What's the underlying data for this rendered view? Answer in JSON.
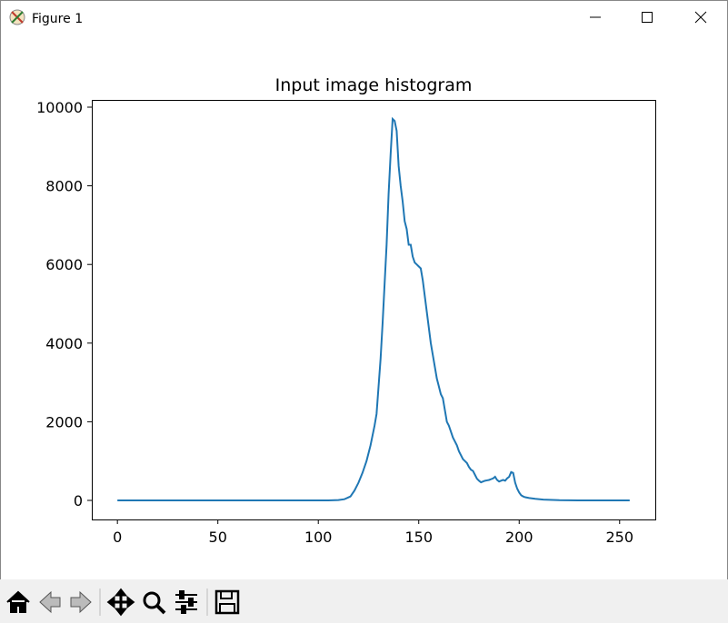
{
  "window": {
    "title": "Figure 1"
  },
  "chart_data": {
    "type": "line",
    "title": "Input image histogram",
    "x": [
      0,
      105,
      110,
      113,
      116,
      118,
      120,
      122,
      124,
      126,
      127,
      128,
      129,
      130,
      131,
      132,
      133,
      134,
      135,
      136,
      137,
      138,
      139,
      140,
      141,
      142,
      143,
      144,
      145,
      146,
      147,
      148,
      149,
      150,
      151,
      152,
      153,
      154,
      155,
      156,
      157,
      158,
      159,
      160,
      161,
      162,
      163,
      164,
      165,
      166,
      167,
      168,
      169,
      170,
      171,
      172,
      173,
      174,
      175,
      176,
      177,
      178,
      179,
      180,
      181,
      182,
      183,
      184,
      185,
      186,
      187,
      188,
      189,
      190,
      191,
      192,
      193,
      194,
      195,
      196,
      197,
      198,
      199,
      200,
      201,
      202,
      203,
      205,
      208,
      212,
      220,
      230,
      255
    ],
    "series": [
      {
        "color": "#1f77b4",
        "values": [
          0,
          0,
          10,
          30,
          100,
          250,
          450,
          700,
          1000,
          1400,
          1650,
          1900,
          2200,
          2900,
          3600,
          4500,
          5500,
          6500,
          7800,
          8800,
          9700,
          9650,
          9400,
          8500,
          8000,
          7600,
          7100,
          6900,
          6500,
          6500,
          6200,
          6050,
          6000,
          5950,
          5900,
          5600,
          5200,
          4800,
          4400,
          4000,
          3700,
          3400,
          3100,
          2900,
          2700,
          2600,
          2300,
          2000,
          1900,
          1750,
          1600,
          1500,
          1400,
          1250,
          1150,
          1050,
          1000,
          950,
          850,
          780,
          750,
          650,
          550,
          500,
          460,
          480,
          500,
          510,
          520,
          540,
          560,
          600,
          520,
          480,
          500,
          520,
          500,
          560,
          600,
          720,
          700,
          450,
          300,
          200,
          130,
          100,
          80,
          60,
          40,
          20,
          5,
          0,
          0
        ]
      }
    ],
    "xlim": [
      -12.75,
      267.75
    ],
    "ylim": [
      -485,
      10185
    ],
    "xticks": [
      0,
      50,
      100,
      150,
      200,
      250
    ],
    "yticks": [
      0,
      2000,
      4000,
      6000,
      8000,
      10000
    ]
  }
}
